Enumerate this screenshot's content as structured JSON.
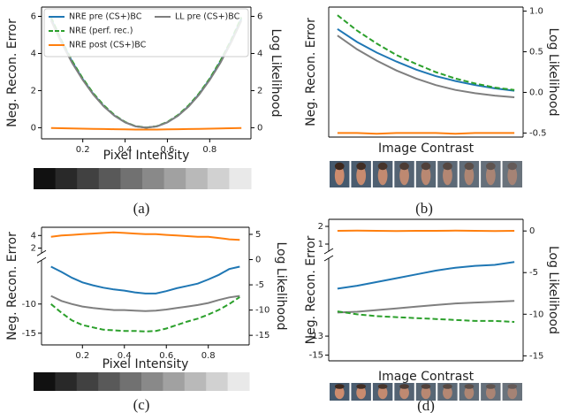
{
  "chart_data": [
    {
      "type": "line",
      "xlabel": "Pixel Intensity",
      "ylabel": "Neg. Recon. Error",
      "y2label": "Log Likelihood",
      "caption": "(a)",
      "x": [
        0.05,
        0.1,
        0.15,
        0.2,
        0.25,
        0.3,
        0.35,
        0.4,
        0.45,
        0.5,
        0.55,
        0.6,
        0.65,
        0.7,
        0.75,
        0.8,
        0.85,
        0.9,
        0.95
      ],
      "xlim": [
        0.005,
        0.995
      ],
      "xticks": [
        0.2,
        0.4,
        0.6,
        0.8
      ],
      "ylim": [
        -0.6,
        6.5
      ],
      "yticks": [
        0,
        2,
        4,
        6
      ],
      "y2lim": [
        -0.6,
        6.5
      ],
      "y2ticks": [
        0,
        2,
        4,
        6
      ],
      "legend": "upper left",
      "series": [
        {
          "name": "NRE pre (CS+)BC",
          "color": "#1f77b4",
          "values": [
            5.87,
            4.64,
            3.55,
            2.61,
            1.81,
            1.16,
            0.65,
            0.29,
            0.07,
            0,
            0.07,
            0.29,
            0.65,
            1.16,
            1.81,
            2.61,
            3.55,
            4.64,
            5.87
          ]
        },
        {
          "name": "NRE (perf. rec.)",
          "color": "#2ca02c",
          "dashed": true,
          "values": [
            5.95,
            4.7,
            3.6,
            2.65,
            1.85,
            1.2,
            0.68,
            0.31,
            0.08,
            0.01,
            0.08,
            0.31,
            0.68,
            1.2,
            1.85,
            2.65,
            3.6,
            4.7,
            5.95
          ]
        },
        {
          "name": "NRE post (CS+)BC",
          "color": "#ff7f0e",
          "values": [
            -0.02,
            -0.03,
            -0.04,
            -0.05,
            -0.06,
            -0.07,
            -0.08,
            -0.09,
            -0.1,
            -0.1,
            -0.1,
            -0.09,
            -0.08,
            -0.07,
            -0.06,
            -0.05,
            -0.04,
            -0.03,
            -0.02
          ]
        },
        {
          "name": "LL pre (CS+)BC",
          "color": "#7f7f7f",
          "axis": "y2",
          "values": [
            5.77,
            4.56,
            3.49,
            2.57,
            1.78,
            1.14,
            0.64,
            0.29,
            0.07,
            0,
            0.07,
            0.29,
            0.64,
            1.14,
            1.78,
            2.57,
            3.49,
            4.56,
            5.77
          ]
        }
      ]
    },
    {
      "type": "line",
      "xlabel": "Image Contrast",
      "ylabel": "Neg. Recon. Error",
      "y2label": "Log Likelihood",
      "caption": "(b)",
      "ylim": [
        -0.55,
        1.05
      ],
      "y2lim": [
        -0.55,
        1.05
      ],
      "y2ticks": [
        {
          "value": 1.0,
          "label": "1.0"
        },
        0.5,
        {
          "value": 0,
          "label": "0.0"
        },
        -0.5
      ],
      "series": [
        {
          "color": "#1f77b4",
          "values": [
            0.78,
            0.62,
            0.49,
            0.38,
            0.28,
            0.2,
            0.14,
            0.09,
            0.05,
            0.02
          ]
        },
        {
          "color": "#2ca02c",
          "dashed": true,
          "values": [
            0.95,
            0.76,
            0.6,
            0.46,
            0.35,
            0.25,
            0.17,
            0.11,
            0.06,
            0.03
          ]
        },
        {
          "color": "#7f7f7f",
          "axis": "y2",
          "values": [
            0.7,
            0.53,
            0.39,
            0.27,
            0.17,
            0.09,
            0.03,
            -0.01,
            -0.04,
            -0.06
          ]
        },
        {
          "color": "#ff7f0e",
          "values": [
            -0.5,
            -0.5,
            -0.51,
            -0.5,
            -0.5,
            -0.5,
            -0.51,
            -0.5,
            -0.5,
            -0.5
          ]
        }
      ]
    },
    {
      "type": "line",
      "xlabel": "Pixel Intensity",
      "ylabel": "Neg. Recon. Error",
      "y2label": "Log Likelihood",
      "caption": "(c)",
      "x": [
        0.05,
        0.1,
        0.15,
        0.2,
        0.25,
        0.3,
        0.35,
        0.4,
        0.45,
        0.5,
        0.55,
        0.6,
        0.65,
        0.7,
        0.75,
        0.8,
        0.85,
        0.9,
        0.95
      ],
      "xlim": [
        0.005,
        0.995
      ],
      "xticks": [
        0.2,
        0.4,
        0.6,
        0.8
      ],
      "ylim": [
        -17,
        5.3
      ],
      "ybreak": [
        -2.5,
        1.2
      ],
      "yticks": [
        4,
        2,
        -10,
        -15
      ],
      "y2lim": [
        -16.9,
        6.4
      ],
      "y2ticks": [
        5,
        0,
        -5,
        -10,
        -15
      ],
      "series": [
        {
          "color": "#ff7f0e",
          "values": [
            3.8,
            4.0,
            4.1,
            4.2,
            4.3,
            4.4,
            4.5,
            4.4,
            4.3,
            4.2,
            4.2,
            4.1,
            4.0,
            3.9,
            3.8,
            3.8,
            3.6,
            3.4,
            3.3
          ]
        },
        {
          "color": "#1f77b4",
          "values": [
            -3.6,
            -4.5,
            -5.5,
            -6.3,
            -6.8,
            -7.2,
            -7.5,
            -7.7,
            -8.0,
            -8.2,
            -8.2,
            -7.8,
            -7.3,
            -6.9,
            -6.5,
            -5.8,
            -5.0,
            -4.0,
            -3.6
          ]
        },
        {
          "color": "#7f7f7f",
          "axis": "y2",
          "values": [
            -7.2,
            -8.2,
            -8.8,
            -9.3,
            -9.6,
            -9.8,
            -10.0,
            -10.0,
            -10.1,
            -10.2,
            -10.1,
            -9.9,
            -9.6,
            -9.3,
            -9.0,
            -8.6,
            -8.0,
            -7.5,
            -7.2
          ]
        },
        {
          "color": "#2ca02c",
          "dashed": true,
          "values": [
            -10,
            -11.5,
            -12.8,
            -13.6,
            -14.0,
            -14.4,
            -14.5,
            -14.6,
            -14.6,
            -14.7,
            -14.6,
            -14.2,
            -13.6,
            -13.0,
            -12.5,
            -11.8,
            -11.0,
            -10.0,
            -8.8
          ]
        }
      ]
    },
    {
      "type": "line",
      "xlabel": "Image Contrast",
      "ylabel": "Neg. Recon. Error",
      "y2label": "Log Likelihood",
      "caption": "(d)",
      "ylim": [
        -15.6,
        2.4
      ],
      "ybreak": [
        -4.8,
        0.6
      ],
      "yticks": [
        2,
        1,
        -13,
        -15
      ],
      "y2lim": [
        -15.6,
        1.4
      ],
      "y2ticks": [
        0,
        -5,
        -10,
        -15
      ],
      "series": [
        {
          "color": "#ff7f0e",
          "values": [
            1.75,
            1.76,
            1.75,
            1.74,
            1.75,
            1.75,
            1.76,
            1.75,
            1.74,
            1.75
          ]
        },
        {
          "color": "#1f77b4",
          "values": [
            -8,
            -7.7,
            -7.3,
            -6.9,
            -6.5,
            -6.1,
            -5.8,
            -5.6,
            -5.5,
            -5.2
          ]
        },
        {
          "color": "#7f7f7f",
          "axis": "y2",
          "values": [
            -9.8,
            -9.7,
            -9.5,
            -9.3,
            -9.1,
            -8.9,
            -8.7,
            -8.6,
            -8.5,
            -8.4
          ]
        },
        {
          "color": "#2ca02c",
          "dashed": true,
          "values": [
            -10.4,
            -10.7,
            -10.9,
            -11.0,
            -11.1,
            -11.2,
            -11.3,
            -11.4,
            -11.4,
            -11.5
          ]
        }
      ]
    }
  ]
}
